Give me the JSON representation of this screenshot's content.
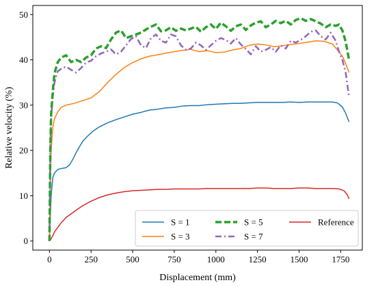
{
  "chart_data": {
    "type": "line",
    "title": "",
    "xlabel": "Displacement (mm)",
    "ylabel": "Relative velocity (%)",
    "xlim": [
      -100,
      1880
    ],
    "ylim": [
      -2,
      52
    ],
    "xticks": [
      0,
      250,
      500,
      750,
      1000,
      1250,
      1500,
      1750
    ],
    "yticks": [
      0,
      10,
      20,
      30,
      40,
      50
    ],
    "grid": false,
    "legend_position": "lower-right",
    "series": [
      {
        "name": "S = 1",
        "color": "#1f77b4",
        "style": "solid",
        "x": [
          0,
          5,
          10,
          20,
          30,
          50,
          70,
          100,
          120,
          140,
          160,
          180,
          200,
          230,
          260,
          300,
          350,
          400,
          450,
          500,
          550,
          600,
          650,
          700,
          750,
          800,
          850,
          900,
          950,
          1000,
          1050,
          1100,
          1150,
          1200,
          1250,
          1300,
          1350,
          1400,
          1450,
          1500,
          1550,
          1600,
          1650,
          1700,
          1730,
          1760,
          1780,
          1800
        ],
        "y": [
          0,
          5,
          10,
          14,
          15,
          15.8,
          16,
          16.2,
          16.8,
          18,
          19.5,
          20.8,
          22,
          23.2,
          24.2,
          25.2,
          26.1,
          26.8,
          27.4,
          28,
          28.4,
          28.9,
          29.1,
          29.4,
          29.5,
          29.8,
          29.9,
          29.9,
          30.1,
          30.2,
          30.3,
          30.4,
          30.4,
          30.5,
          30.6,
          30.6,
          30.6,
          30.6,
          30.7,
          30.6,
          30.7,
          30.7,
          30.7,
          30.7,
          30.5,
          29.6,
          28.2,
          26.3
        ]
      },
      {
        "name": "S = 3",
        "color": "#ff7f0e",
        "style": "solid",
        "x": [
          0,
          5,
          10,
          20,
          30,
          50,
          70,
          100,
          150,
          200,
          250,
          300,
          350,
          400,
          450,
          500,
          550,
          600,
          650,
          700,
          750,
          800,
          850,
          900,
          950,
          1000,
          1050,
          1100,
          1150,
          1200,
          1250,
          1300,
          1350,
          1400,
          1450,
          1500,
          1550,
          1600,
          1650,
          1700,
          1730,
          1760,
          1780,
          1800
        ],
        "y": [
          0,
          12,
          20,
          25,
          27,
          28.5,
          29.5,
          30,
          30.4,
          31,
          31.6,
          33,
          35,
          36.8,
          38.3,
          39.4,
          40.2,
          40.8,
          41.1,
          41.5,
          41.8,
          42.1,
          42.3,
          41.8,
          42,
          41.6,
          41.7,
          42.2,
          42.5,
          43.2,
          43.5,
          43.3,
          42.9,
          43.1,
          43.4,
          43.6,
          43.9,
          44.2,
          44.1,
          43.5,
          42.2,
          40.8,
          39.2,
          37.2
        ]
      },
      {
        "name": "S = 5",
        "color": "#2ca02c",
        "style": "dashed",
        "x": [
          0,
          5,
          10,
          20,
          30,
          50,
          70,
          100,
          130,
          160,
          190,
          220,
          250,
          280,
          310,
          340,
          370,
          400,
          430,
          460,
          490,
          520,
          550,
          580,
          610,
          640,
          670,
          700,
          730,
          760,
          790,
          820,
          850,
          880,
          910,
          940,
          970,
          1000,
          1030,
          1060,
          1090,
          1120,
          1150,
          1180,
          1210,
          1240,
          1270,
          1300,
          1330,
          1360,
          1390,
          1420,
          1450,
          1480,
          1510,
          1540,
          1570,
          1600,
          1630,
          1660,
          1690,
          1720,
          1740,
          1760,
          1780,
          1800
        ],
        "y": [
          0,
          20,
          28,
          33,
          37,
          39.5,
          40.5,
          41,
          39.5,
          40,
          39.5,
          40.5,
          41,
          42.5,
          43,
          42.6,
          44.5,
          46,
          46.5,
          44.8,
          45.2,
          45.6,
          46,
          46.7,
          47.3,
          47.8,
          46.3,
          46.5,
          47.2,
          46.4,
          46.9,
          46.5,
          46.9,
          47.3,
          46.2,
          47.2,
          47.8,
          46.8,
          48.2,
          47.4,
          46.4,
          47.4,
          47.8,
          46.6,
          47.6,
          48.2,
          48.5,
          47.2,
          47.8,
          48.6,
          48.1,
          48.6,
          47.8,
          48.8,
          49.2,
          48.6,
          49,
          48.5,
          48,
          47.2,
          47.8,
          47.5,
          47.8,
          46.5,
          44,
          40
        ]
      },
      {
        "name": "S = 7",
        "color": "#9467bd",
        "style": "dashdot",
        "x": [
          0,
          5,
          10,
          20,
          30,
          50,
          70,
          100,
          130,
          160,
          190,
          220,
          250,
          280,
          310,
          340,
          370,
          400,
          430,
          460,
          490,
          520,
          550,
          580,
          610,
          640,
          670,
          700,
          730,
          760,
          790,
          820,
          850,
          880,
          910,
          940,
          970,
          1000,
          1030,
          1060,
          1090,
          1120,
          1150,
          1180,
          1210,
          1240,
          1270,
          1300,
          1330,
          1360,
          1390,
          1420,
          1450,
          1480,
          1510,
          1540,
          1570,
          1600,
          1630,
          1660,
          1690,
          1720,
          1740,
          1760,
          1780,
          1800
        ],
        "y": [
          0,
          20,
          27,
          32,
          35,
          37.5,
          38,
          38.5,
          37.8,
          37.2,
          38.2,
          39.4,
          39.8,
          40.8,
          41.4,
          41.8,
          42.3,
          41.2,
          41.8,
          43.2,
          44.6,
          45.2,
          43.2,
          42.6,
          44.8,
          45.6,
          44.2,
          43.8,
          45.6,
          45.2,
          43.2,
          42.2,
          42.5,
          43.8,
          43.2,
          42.2,
          43.2,
          44.2,
          44.8,
          44.4,
          43.6,
          44.8,
          43.4,
          42.4,
          41.2,
          43,
          41.8,
          42.2,
          42.8,
          41.8,
          43.2,
          42.5,
          44.2,
          43.8,
          44.4,
          45.2,
          46.2,
          46.5,
          45.2,
          44.5,
          46,
          44.2,
          41.8,
          40,
          37.2,
          31.8
        ]
      },
      {
        "name": "Reference",
        "color": "#d62728",
        "style": "solid",
        "x": [
          0,
          10,
          20,
          30,
          50,
          70,
          100,
          130,
          160,
          200,
          250,
          300,
          350,
          400,
          450,
          500,
          550,
          600,
          650,
          700,
          750,
          800,
          850,
          900,
          950,
          1000,
          1050,
          1100,
          1150,
          1200,
          1250,
          1300,
          1350,
          1400,
          1450,
          1500,
          1550,
          1600,
          1650,
          1700,
          1740,
          1770,
          1790,
          1800
        ],
        "y": [
          0,
          0.5,
          1.2,
          2,
          3,
          4,
          5.2,
          6,
          6.8,
          7.8,
          8.8,
          9.6,
          10.2,
          10.6,
          10.9,
          11.1,
          11.2,
          11.3,
          11.4,
          11.4,
          11.5,
          11.5,
          11.5,
          11.5,
          11.6,
          11.6,
          11.6,
          11.6,
          11.6,
          11.6,
          11.7,
          11.7,
          11.6,
          11.6,
          11.6,
          11.7,
          11.7,
          11.6,
          11.6,
          11.6,
          11.5,
          11.1,
          10.2,
          9.3
        ]
      }
    ]
  }
}
